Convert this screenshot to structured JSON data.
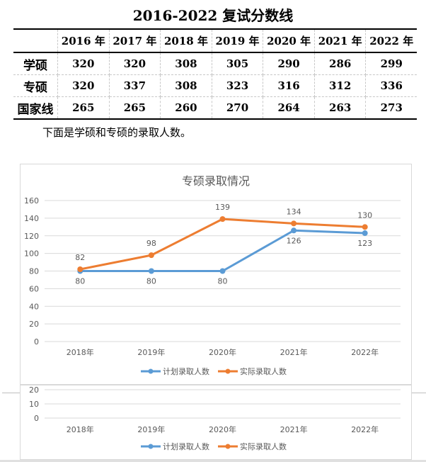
{
  "title": "2016-2022 复试分数线",
  "table": {
    "headers": [
      "",
      "2016 年",
      "2017 年",
      "2018 年",
      "2019 年",
      "2020 年",
      "2021 年",
      "2022 年"
    ],
    "rows": [
      [
        "学硕",
        "320",
        "320",
        "308",
        "305",
        "290",
        "286",
        "299"
      ],
      [
        "专硕",
        "320",
        "337",
        "308",
        "323",
        "316",
        "312",
        "336"
      ],
      [
        "国家线",
        "265",
        "265",
        "260",
        "270",
        "264",
        "263",
        "273"
      ]
    ]
  },
  "paragraph": "下面是学硕和专硕的录取人数。",
  "chart_data": {
    "type": "line",
    "title": "专硕录取情况",
    "categories": [
      "2018年",
      "2019年",
      "2020年",
      "2021年",
      "2022年"
    ],
    "series": [
      {
        "name": "计划录取人数",
        "color": "#5b9bd5",
        "values": [
          80,
          80,
          80,
          126,
          123
        ]
      },
      {
        "name": "实际录取人数",
        "color": "#ed7d31",
        "values": [
          82,
          98,
          139,
          134,
          130
        ]
      }
    ],
    "yticks": [
      0,
      20,
      40,
      60,
      80,
      100,
      120,
      140,
      160
    ],
    "ylim": [
      0,
      160
    ],
    "grid": true,
    "legend": "bottom"
  },
  "fragment": {
    "yticks": [
      "20",
      "10",
      "0"
    ]
  }
}
